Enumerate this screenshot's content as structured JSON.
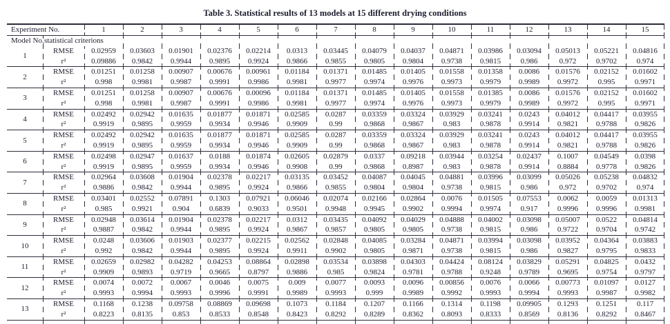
{
  "title": "Table 3. Statistical results of 13 models at 15 different drying conditions",
  "table": {
    "header": {
      "experiment_label": "Experiment No.",
      "experiments": [
        "1",
        "2",
        "3",
        "4",
        "5",
        "6",
        "7",
        "8",
        "9",
        "10",
        "11",
        "12",
        "13",
        "14",
        "15"
      ]
    },
    "subheader": {
      "model_label": "Model No.",
      "criteria_label": "statistical criterions"
    },
    "criteria": [
      "RMSE",
      "r²"
    ],
    "models": [
      {
        "no": "1",
        "rmse": [
          "0.02959",
          "0.03603",
          "0.01901",
          "0.02376",
          "0.02214",
          "0.0313",
          "0.03445",
          "0.04079",
          "0.04037",
          "0.04871",
          "0.03986",
          "0.03094",
          "0.05013",
          "0.05221",
          "0.04816"
        ],
        "r2": [
          "0.09886",
          "0.9842",
          "0.9944",
          "0.9895",
          "0.9924",
          "0.9866",
          "0.9855",
          "0.9805",
          "0.9804",
          "0.9738",
          "0.9815",
          "0.986",
          "0.972",
          "0.9702",
          "0.974"
        ]
      },
      {
        "no": "2",
        "rmse": [
          "0.01251",
          "0.01258",
          "0.00907",
          "0.00676",
          "0.00961",
          "0.01184",
          "0.01371",
          "0.01485",
          "0.01405",
          "0.01558",
          "0.01358",
          "0.0086",
          "0.01576",
          "0.02152",
          "0.01602"
        ],
        "r2": [
          "0.998",
          "0.9981",
          "0.9987",
          "0.9991",
          "0.9986",
          "0.9981",
          "0.9977",
          "0.9974",
          "0.9976",
          "0.9973",
          "0.9979",
          "0.9989",
          "0.9972",
          "0.995",
          "0.9971"
        ]
      },
      {
        "no": "3",
        "rmse": [
          "0.01251",
          "0.01258",
          "0.00907",
          "0.00676",
          "0.00096",
          "0.01184",
          "0.01371",
          "0.01485",
          "0.01405",
          "0.01558",
          "0.01385",
          "0.0086",
          "0.01576",
          "0.02152",
          "0.01602"
        ],
        "r2": [
          "0.998",
          "0.9981",
          "0.9987",
          "0.9991",
          "0.9986",
          "0.9981",
          "0.9977",
          "0.9974",
          "0.9976",
          "0.9973",
          "0.9979",
          "0.9989",
          "0.9972",
          "0.995",
          "0.9971"
        ]
      },
      {
        "no": "4",
        "rmse": [
          "0.02492",
          "0.02942",
          "0.01635",
          "0.01877",
          "0.01871",
          "0.02585",
          "0.0287",
          "0.03359",
          "0.03324",
          "0.03929",
          "0.03241",
          "0.0243",
          "0.04012",
          "0.04417",
          "0.03955"
        ],
        "r2": [
          "0.9919",
          "0.9895",
          "0.9959",
          "0.9934",
          "0.9946",
          "0.9909",
          "0.99",
          "0.9868",
          "0.9867",
          "0.983",
          "0.9878",
          "0.9914",
          "0.9821",
          "0.9788",
          "0.9826"
        ]
      },
      {
        "no": "5",
        "rmse": [
          "0.02492",
          "0.02942",
          "0.01635",
          "0.01877",
          "0.01871",
          "0.02585",
          "0.0287",
          "0.03359",
          "0.03324",
          "0.03929",
          "0.03241",
          "0.0243",
          "0.04012",
          "0.04417",
          "0.03955"
        ],
        "r2": [
          "0.9919",
          "0.9895",
          "0.9959",
          "0.9934",
          "0.9946",
          "0.9909",
          "0.99",
          "0.9868",
          "0.9867",
          "0.983",
          "0.9878",
          "0.9914",
          "0.9821",
          "0.9788",
          "0.9826"
        ]
      },
      {
        "no": "6",
        "rmse": [
          "0.02498",
          "0.02947",
          "0.01637",
          "0.0188",
          "0.01874",
          "0.02605",
          "0.02879",
          "0.0337",
          "0.09218",
          "0.03944",
          "0.03254",
          "0.02437",
          "0.1007",
          "0.04549",
          "0.0398"
        ],
        "r2": [
          "0.9919",
          "0.9895",
          "0.9959",
          "0.9934",
          "0.9946",
          "0.9908",
          "0.99",
          "0.9868",
          "0.8987",
          "0.983",
          "0.9878",
          "0.9914",
          "0.8884",
          "0.9778",
          "0.9826"
        ]
      },
      {
        "no": "7",
        "rmse": [
          "0.02964",
          "0.03608",
          "0.01904",
          "0.02378",
          "0.02217",
          "0.03135",
          "0.03452",
          "0.04087",
          "0.04045",
          "0.04881",
          "0.03996",
          "0.03099",
          "0.05026",
          "0.05238",
          "0.04832"
        ],
        "r2": [
          "0.9886",
          "0.9842",
          "0.9944",
          "0.9895",
          "0.9924",
          "0.9866",
          "0.9855",
          "0.9804",
          "0.9804",
          "0.9738",
          "0.9815",
          "0.986",
          "0.972",
          "0.9702",
          "0.974"
        ]
      },
      {
        "no": "8",
        "rmse": [
          "0.03401",
          "0.02552",
          "0.07891",
          "0.1303",
          "0.07921",
          "0.06046",
          "0.02074",
          "0.02166",
          "0.02864",
          "0.0076",
          "0.01505",
          "0.07553",
          "0.0062",
          "0.0059",
          "0.01313"
        ],
        "r2": [
          "0.985",
          "0.9921",
          "0.904",
          "0.6839",
          "0.9033",
          "0.9501",
          "0.9948",
          "0.9945",
          "0.9902",
          "0.9994",
          "0.9974",
          "0.917",
          "0.9996",
          "0.9996",
          "0.9981"
        ]
      },
      {
        "no": "9",
        "rmse": [
          "0.02948",
          "0.03614",
          "0.01904",
          "0.02378",
          "0.02217",
          "0.0312",
          "0.03435",
          "0.04092",
          "0.04029",
          "0.04888",
          "0.04002",
          "0.03098",
          "0.05007",
          "0.0522",
          "0.04814"
        ],
        "r2": [
          "0.9887",
          "0.9842",
          "0.9944",
          "0.9895",
          "0.9924",
          "0.9867",
          "0.9857",
          "0.9805",
          "0.9805",
          "0.9738",
          "0.9815",
          "0.986",
          "0.9722",
          "0.9704",
          "0.9742"
        ]
      },
      {
        "no": "10",
        "rmse": [
          "0.0248",
          "0.03606",
          "0.01903",
          "0.02377",
          "0.02215",
          "0.02562",
          "0.02848",
          "0.04085",
          "0.03284",
          "0.04871",
          "0.03994",
          "0.03098",
          "0.03952",
          "0.04364",
          "0.03883"
        ],
        "r2": [
          "0.992",
          "0.9842",
          "0.9944",
          "0.9895",
          "0.9924",
          "0.9911",
          "0.9902",
          "0.9805",
          "0.9871",
          "0.9738",
          "0.9815",
          "0.986",
          "0.9827",
          "0.9795",
          "0.9833"
        ]
      },
      {
        "no": "11",
        "rmse": [
          "0.02659",
          "0.02982",
          "0.04282",
          "0.04253",
          "0.08864",
          "0.02898",
          "0.03534",
          "0.03898",
          "0.04303",
          "0.04424",
          "0.08124",
          "0.03829",
          "0.05291",
          "0.04825",
          "0.0432"
        ],
        "r2": [
          "0.9909",
          "0.9893",
          "0.9719",
          "0.9665",
          "0.8797",
          "0.9886",
          "0.985",
          "0.9824",
          "0.9781",
          "0.9788",
          "0.9248",
          "0.9789",
          "0.9695",
          "0.9754",
          "0.9797"
        ]
      },
      {
        "no": "12",
        "rmse": [
          "0.0074",
          "0.0072",
          "0.0067",
          "0.0046",
          "0.0075",
          "0.009",
          "0.0077",
          "0.0093",
          "0.0096",
          "0.00856",
          "0.0076",
          "0.0066",
          "0.00773",
          "0.01097",
          "0.0127"
        ],
        "r2": [
          "0.9993",
          "0.9994",
          "0.9993",
          "0.9996",
          "0.9991",
          "0.9989",
          "0.9993",
          "0.999",
          "0.9989",
          "0.9992",
          "0.9993",
          "0.9994",
          "0.9993",
          "0.9987",
          "0.9982"
        ]
      },
      {
        "no": "13",
        "rmse": [
          "0.1168",
          "0.1238",
          "0.09758",
          "0.08869",
          "0.09698",
          "0.1073",
          "0.1184",
          "0.1207",
          "0.1166",
          "0.1314",
          "0.1198",
          "0.09905",
          "0.1293",
          "0.1251",
          "0.117"
        ],
        "r2": [
          "0.8223",
          "0.8135",
          "0.853",
          "0.8533",
          "0.8548",
          "0.8423",
          "0.8292",
          "0.8289",
          "0.8362",
          "0.8093",
          "0.8333",
          "0.8569",
          "0.8136",
          "0.8292",
          "0.8467"
        ]
      }
    ]
  }
}
